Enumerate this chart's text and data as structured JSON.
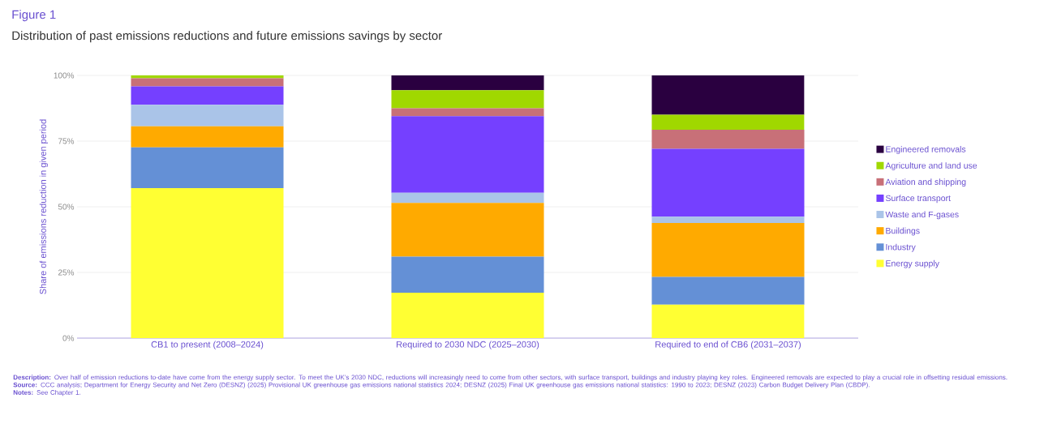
{
  "chart_data": {
    "type": "bar",
    "stacked": true,
    "title": "Figure 1",
    "subtitle": "Distribution of past emissions reductions and future emissions savings by sector",
    "ylabel": "Share of emissions reduction in given period",
    "categories": [
      "CB1 to present (2008–2024)",
      "Required to 2030 NDC (2025–2030)",
      "Required to end of CB6 (2031–2037)"
    ],
    "series": [
      {
        "name": "Energy supply",
        "color": "#ffff33",
        "values": [
          57.1,
          17.3,
          12.7
        ]
      },
      {
        "name": "Industry",
        "color": "#6490d6",
        "values": [
          15.5,
          13.7,
          10.6
        ]
      },
      {
        "name": "Buildings",
        "color": "#ffaa00",
        "values": [
          8.0,
          20.5,
          20.5
        ]
      },
      {
        "name": "Waste and F-gases",
        "color": "#aac4e8",
        "values": [
          8.2,
          3.8,
          2.4
        ]
      },
      {
        "name": "Surface transport",
        "color": "#7540ff",
        "values": [
          7.0,
          29.2,
          25.9
        ]
      },
      {
        "name": "Aviation and shipping",
        "color": "#c87078",
        "values": [
          3.1,
          3.0,
          7.2
        ]
      },
      {
        "name": "Agriculture and land use",
        "color": "#a0d800",
        "values": [
          1.1,
          6.9,
          5.7
        ]
      },
      {
        "name": "Engineered removals",
        "color": "#2a0040",
        "values": [
          0,
          5.6,
          15.0
        ]
      }
    ],
    "ylim": [
      0,
      100
    ],
    "yticks": [
      {
        "value": 0,
        "label": "0%"
      },
      {
        "value": 25,
        "label": "25%"
      },
      {
        "value": 50,
        "label": "50%"
      },
      {
        "value": 75,
        "label": "75%"
      },
      {
        "value": 100,
        "label": "100%"
      }
    ],
    "grid": "y",
    "legend": "right",
    "annotations": [
      "**Description:** Over half of emission reductions to-date have come from the energy supply sector. To meet the UK’s 2030 NDC, reductions will increasingly need to come from other sectors, with surface transport, buildings and industry playing key roles. Engineered removals are expected to play a crucial role in offsetting residual emissions.",
      "**Source:** CCC analysis; Department for Energy Security and Net Zero (DESNZ) (2025) Provisional UK greenhouse gas emissions national statistics 2024; DESNZ (2025) Final UK greenhouse gas emissions national statistics: 1990 to 2023; DESNZ (2023) Carbon Budget Delivery Plan (CBDP).",
      "**Notes:** See Chapter 1."
    ]
  }
}
